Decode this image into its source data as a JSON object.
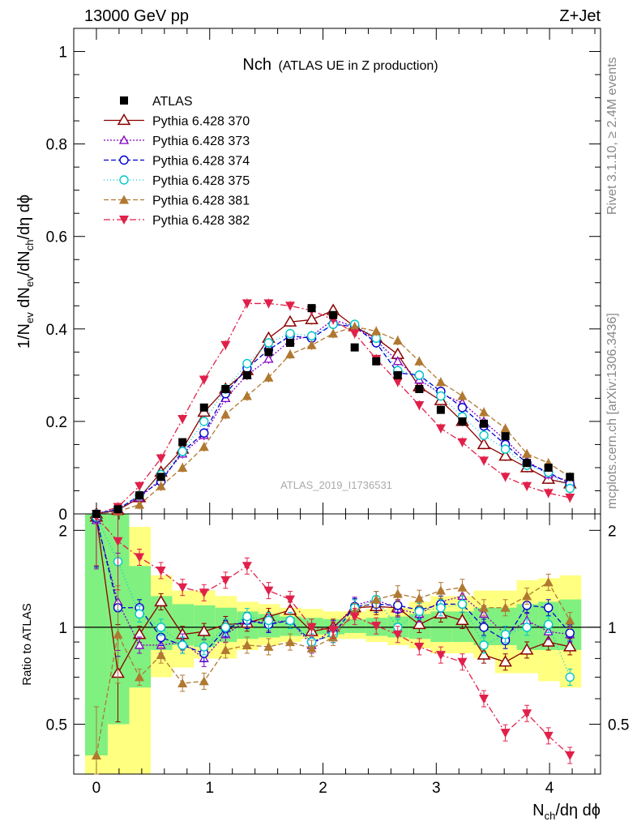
{
  "header": {
    "left": "13000 GeV pp",
    "right": "Z+Jet"
  },
  "side_labels": {
    "rivet": "Rivet 3.1.10, ≥ 2.4M events",
    "mcplots": "mcplots.cern.ch [arXiv:1306.3436]"
  },
  "chart_data": {
    "type": "scatter",
    "title_main": "Nch",
    "title_sub": "(ATLAS UE in Z production)",
    "watermark": "ATLAS_2019_I1736531",
    "xlabel": "N_ch/dη dϕ",
    "ylabel": "1/N_ev dN_ev/dN_ch/dη dϕ",
    "ratio_ylabel": "Ratio to ATLAS",
    "xlim": [
      -0.2,
      4.45
    ],
    "ylim": [
      0,
      1.05
    ],
    "ratio_ylim": [
      0.35,
      2.25
    ],
    "x_ticks": [
      "0",
      "1",
      "2",
      "3",
      "4"
    ],
    "y_ticks": [
      "0",
      "0.2",
      "0.4",
      "0.6",
      "0.8",
      "1"
    ],
    "ratio_ticks": [
      "0.5",
      "1",
      "2"
    ],
    "x": [
      0,
      0.19,
      0.38,
      0.57,
      0.76,
      0.95,
      1.14,
      1.33,
      1.52,
      1.71,
      1.9,
      2.09,
      2.28,
      2.47,
      2.66,
      2.85,
      3.04,
      3.23,
      3.42,
      3.61,
      3.8,
      3.99,
      4.18
    ],
    "data": {
      "name": "ATLAS",
      "values": [
        0.0,
        0.01,
        0.04,
        0.08,
        0.155,
        0.23,
        0.27,
        0.3,
        0.35,
        0.37,
        0.445,
        0.43,
        0.36,
        0.33,
        0.3,
        0.27,
        0.225,
        0.2,
        0.195,
        0.168,
        0.11,
        0.1,
        0.08
      ]
    },
    "series": [
      {
        "name": "Pythia 6.428 370",
        "color": "#8b0000",
        "marker": "triangle-open",
        "dash": "solid",
        "values": [
          0.0,
          0.008,
          0.035,
          0.09,
          0.14,
          0.22,
          0.27,
          0.31,
          0.38,
          0.415,
          0.42,
          0.44,
          0.405,
          0.38,
          0.345,
          0.275,
          0.245,
          0.2,
          0.15,
          0.125,
          0.1,
          0.075,
          0.065
        ],
        "ratio": [
          2.2,
          0.72,
          0.95,
          1.2,
          0.95,
          0.97,
          1.02,
          1.03,
          1.08,
          1.13,
          0.97,
          1.0,
          1.15,
          1.16,
          1.15,
          1.02,
          1.1,
          1.05,
          0.82,
          0.78,
          0.85,
          0.9,
          0.87
        ]
      },
      {
        "name": "Pythia 6.428 373",
        "color": "#8000c0",
        "marker": "triangle-open-small",
        "dash": "2,2",
        "values": [
          0.0,
          0.012,
          0.035,
          0.075,
          0.13,
          0.17,
          0.25,
          0.3,
          0.335,
          0.375,
          0.385,
          0.42,
          0.405,
          0.375,
          0.33,
          0.29,
          0.26,
          0.24,
          0.2,
          0.16,
          0.115,
          0.085,
          0.07
        ],
        "ratio": [
          2.15,
          1.2,
          0.88,
          0.88,
          0.9,
          0.8,
          0.95,
          1.05,
          1.03,
          1.05,
          0.88,
          0.99,
          1.17,
          1.22,
          1.14,
          1.1,
          1.2,
          1.25,
          1.1,
          0.95,
          1.05,
          0.97,
          0.95
        ]
      },
      {
        "name": "Pythia 6.428 374",
        "color": "#0000d0",
        "marker": "circle-open",
        "dash": "6,3",
        "values": [
          0.0,
          0.01,
          0.04,
          0.07,
          0.135,
          0.175,
          0.26,
          0.315,
          0.355,
          0.385,
          0.38,
          0.41,
          0.405,
          0.37,
          0.305,
          0.3,
          0.265,
          0.23,
          0.19,
          0.15,
          0.11,
          0.09,
          0.065
        ],
        "ratio": [
          2.18,
          1.15,
          1.15,
          0.93,
          0.88,
          0.83,
          0.99,
          1.05,
          1.02,
          1.05,
          0.9,
          0.95,
          1.16,
          1.18,
          1.17,
          1.13,
          1.18,
          1.18,
          1.0,
          0.91,
          1.17,
          1.15,
          0.96
        ]
      },
      {
        "name": "Pythia 6.428 375",
        "color": "#00c8c8",
        "marker": "circle-open",
        "dash": "1,3",
        "values": [
          0.0,
          0.012,
          0.04,
          0.085,
          0.135,
          0.2,
          0.27,
          0.325,
          0.37,
          0.39,
          0.385,
          0.41,
          0.41,
          0.38,
          0.31,
          0.3,
          0.255,
          0.21,
          0.17,
          0.14,
          0.105,
          0.09,
          0.055
        ],
        "ratio": [
          2.2,
          1.6,
          1.1,
          1.0,
          0.88,
          0.87,
          1.0,
          1.08,
          1.05,
          1.05,
          0.9,
          0.95,
          1.15,
          1.22,
          1.0,
          1.12,
          1.15,
          1.18,
          0.88,
          0.95,
          1.0,
          1.02,
          0.7
        ]
      },
      {
        "name": "Pythia 6.428 381",
        "color": "#b07830",
        "marker": "triangle-filled",
        "dash": "6,3",
        "values": [
          0.0,
          0.005,
          0.02,
          0.06,
          0.1,
          0.145,
          0.215,
          0.255,
          0.295,
          0.345,
          0.365,
          0.39,
          0.405,
          0.395,
          0.375,
          0.33,
          0.285,
          0.255,
          0.22,
          0.185,
          0.13,
          0.11,
          0.08
        ],
        "ratio": [
          0.4,
          0.95,
          0.7,
          0.82,
          0.67,
          0.68,
          0.85,
          0.88,
          0.87,
          0.9,
          0.86,
          0.93,
          1.12,
          1.22,
          1.27,
          1.23,
          1.3,
          1.33,
          1.15,
          1.15,
          1.25,
          1.38,
          1.05
        ]
      },
      {
        "name": "Pythia 6.428 382",
        "color": "#e0204a",
        "marker": "triangle-down-filled",
        "dash": "8,3,2,3",
        "values": [
          0.0,
          0.015,
          0.06,
          0.12,
          0.205,
          0.29,
          0.365,
          0.455,
          0.455,
          0.45,
          0.44,
          0.42,
          0.39,
          0.335,
          0.285,
          0.235,
          0.185,
          0.155,
          0.115,
          0.08,
          0.06,
          0.045,
          0.035
        ],
        "ratio": [
          2.2,
          1.85,
          1.65,
          1.5,
          1.33,
          1.28,
          1.4,
          1.55,
          1.3,
          1.22,
          1.0,
          0.98,
          1.08,
          1.01,
          0.95,
          0.87,
          0.82,
          0.78,
          0.6,
          0.47,
          0.54,
          0.46,
          0.4
        ]
      }
    ],
    "bands": {
      "x_edges": [
        -0.1,
        0.1,
        0.29,
        0.48,
        0.67,
        0.86,
        1.05,
        1.24,
        1.43,
        1.62,
        1.81,
        2.0,
        2.19,
        2.38,
        2.57,
        2.76,
        2.95,
        3.14,
        3.33,
        3.52,
        3.71,
        3.9,
        4.09,
        4.28
      ],
      "green_low": [
        0.4,
        0.5,
        0.65,
        0.85,
        0.88,
        0.87,
        0.9,
        0.92,
        0.93,
        0.94,
        0.95,
        0.95,
        0.96,
        0.94,
        0.93,
        0.92,
        0.9,
        0.9,
        0.88,
        0.88,
        0.85,
        0.85,
        0.85
      ],
      "green_high": [
        2.25,
        2.25,
        1.55,
        1.25,
        1.18,
        1.17,
        1.15,
        1.12,
        1.1,
        1.08,
        1.07,
        1.06,
        1.06,
        1.07,
        1.08,
        1.1,
        1.12,
        1.12,
        1.15,
        1.15,
        1.18,
        1.2,
        1.22
      ],
      "yellow_low": [
        0.35,
        0.35,
        0.35,
        0.7,
        0.75,
        0.8,
        0.8,
        0.85,
        0.88,
        0.9,
        0.92,
        0.92,
        0.92,
        0.9,
        0.88,
        0.86,
        0.83,
        0.83,
        0.8,
        0.72,
        0.72,
        0.68,
        0.65
      ],
      "yellow_high": [
        2.25,
        2.25,
        2.05,
        1.45,
        1.3,
        1.3,
        1.25,
        1.2,
        1.18,
        1.15,
        1.14,
        1.12,
        1.12,
        1.14,
        1.15,
        1.2,
        1.25,
        1.25,
        1.3,
        1.3,
        1.4,
        1.42,
        1.45
      ]
    }
  }
}
